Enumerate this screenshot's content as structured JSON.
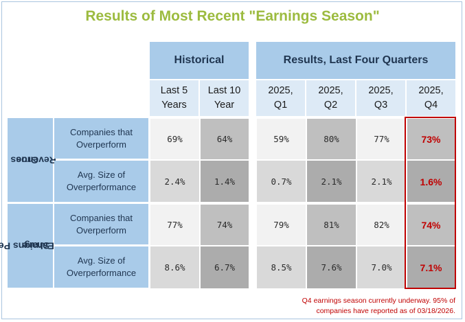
{
  "title": "Results of Most Recent \"Earnings Season\"",
  "groups": {
    "historical": "Historical",
    "recent": "Results, Last Four Quarters"
  },
  "columns": [
    {
      "line1": "Last 5",
      "line2": "Years"
    },
    {
      "line1": "Last 10",
      "line2": "Year"
    },
    {
      "line1": "2025,",
      "line2": "Q1"
    },
    {
      "line1": "2025,",
      "line2": "Q2"
    },
    {
      "line1": "2025,",
      "line2": "Q3"
    },
    {
      "line1": "2025,",
      "line2": "Q4"
    }
  ],
  "row_groups": [
    {
      "label_line1": "Gross",
      "label_line2": "Revenue",
      "rows": [
        {
          "metric_line1": "Companies that",
          "metric_line2": "Overperform",
          "values": [
            "69%",
            "64%",
            "59%",
            "80%",
            "77%",
            "73%"
          ]
        },
        {
          "metric_line1": "Avg. Size of",
          "metric_line2": "Overperformance",
          "values": [
            "2.4%",
            "1.4%",
            "0.7%",
            "2.1%",
            "2.1%",
            "1.6%"
          ]
        }
      ]
    },
    {
      "label_line1": "Earnigns Per",
      "label_line2": "Share",
      "rows": [
        {
          "metric_line1": "Companies that",
          "metric_line2": "Overperform",
          "values": [
            "77%",
            "74%",
            "79%",
            "81%",
            "82%",
            "74%"
          ]
        },
        {
          "metric_line1": "Avg. Size of",
          "metric_line2": "Overperformance",
          "values": [
            "8.6%",
            "6.7%",
            "8.5%",
            "7.6%",
            "7.0%",
            "7.1%"
          ]
        }
      ]
    }
  ],
  "footnote": "Q4 earnings season currently underway.  95% of\ncompanies have reported as of 03/18/2026.",
  "colors": {
    "title": "#9cbb3f",
    "header_blue": "#a9cbe9",
    "subheader_blue": "#ddeaf6",
    "highlight_red": "#c00000"
  }
}
